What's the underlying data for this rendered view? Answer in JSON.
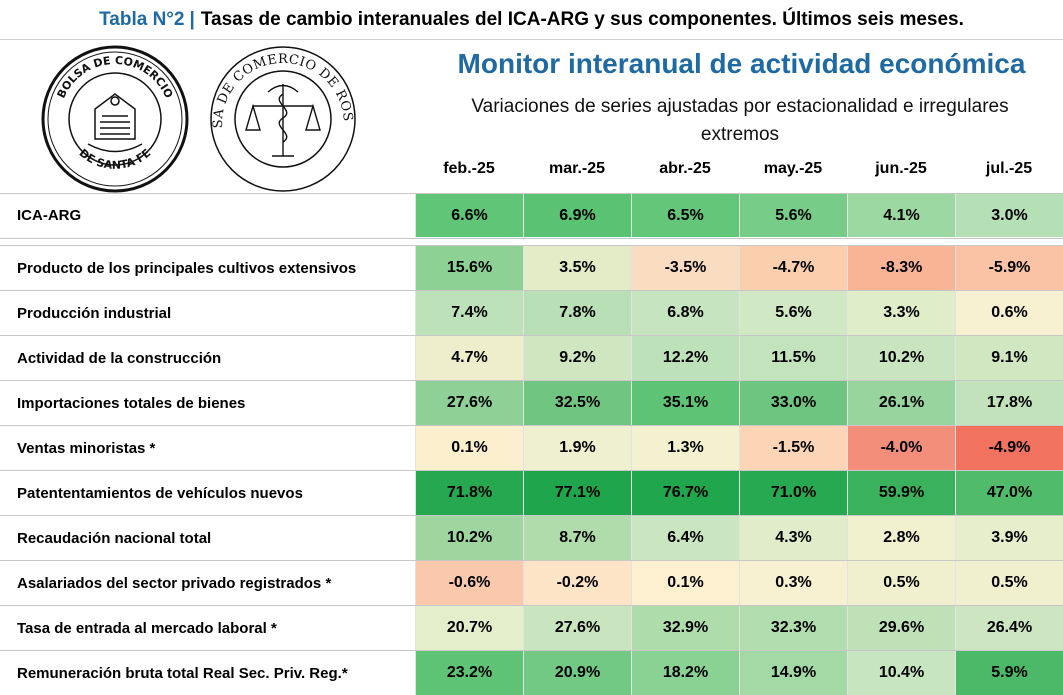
{
  "header": {
    "table_label": "Tabla N°2",
    "separator": "|",
    "table_title": "Tasas de cambio interanuales del ICA-ARG y sus componentes. Últimos seis meses.",
    "monitor_title": "Monitor interanual de actividad económica",
    "monitor_subtitle": "Variaciones de series ajustadas por estacionalidad e irregulares extremos"
  },
  "logos": {
    "santafe": "BOLSA DE COMERCIO DE SANTA FE",
    "rosario": "BOLSA DE COMERCIO DE ROSARIO"
  },
  "months": [
    "feb.-25",
    "mar.-25",
    "abr.-25",
    "may.-25",
    "jun.-25",
    "jul.-25"
  ],
  "rows": [
    {
      "label": "ICA-ARG",
      "values": [
        "6.6%",
        "6.9%",
        "6.5%",
        "5.6%",
        "4.1%",
        "3.0%"
      ],
      "colors": [
        "#60c577",
        "#5ac273",
        "#63c679",
        "#77cc87",
        "#9cd8a2",
        "#b5e0b5"
      ]
    },
    {
      "label": "Producto de los principales cultivos extensivos",
      "values": [
        "15.6%",
        "3.5%",
        "-3.5%",
        "-4.7%",
        "-8.3%",
        "-5.9%"
      ],
      "colors": [
        "#8dd294",
        "#e3ecc7",
        "#fadcc0",
        "#fbcfae",
        "#f9b395",
        "#fac3a5"
      ]
    },
    {
      "label": "Producción industrial",
      "values": [
        "7.4%",
        "7.8%",
        "6.8%",
        "5.6%",
        "3.3%",
        "0.6%"
      ],
      "colors": [
        "#bde1b9",
        "#b8dfb6",
        "#c5e4bf",
        "#d1e8c4",
        "#e0edc9",
        "#f8f1d1"
      ]
    },
    {
      "label": "Actividad de la construcción",
      "values": [
        "4.7%",
        "9.2%",
        "12.2%",
        "11.5%",
        "10.2%",
        "9.1%"
      ],
      "colors": [
        "#eeeecd",
        "#cfe6c1",
        "#bde1b9",
        "#c2e3bc",
        "#c9e5bf",
        "#d0e7c2"
      ]
    },
    {
      "label": "Importaciones totales de bienes",
      "values": [
        "27.6%",
        "32.5%",
        "35.1%",
        "33.0%",
        "26.1%",
        "17.8%"
      ],
      "colors": [
        "#8fd097",
        "#70c681",
        "#5fc375",
        "#6dc57f",
        "#98d49d",
        "#c1e2bb"
      ]
    },
    {
      "label": "Ventas minoristas *",
      "values": [
        "0.1%",
        "1.9%",
        "1.3%",
        "-1.5%",
        "-4.0%",
        "-4.9%"
      ],
      "colors": [
        "#fcefce",
        "#eff0cf",
        "#f4f1d0",
        "#fbd5b5",
        "#f38e7a",
        "#f0725f"
      ]
    },
    {
      "label": "Patententamientos de vehículos nuevos",
      "values": [
        "71.8%",
        "77.1%",
        "76.7%",
        "71.0%",
        "59.9%",
        "47.0%"
      ],
      "colors": [
        "#25a850",
        "#1fa54c",
        "#20a64d",
        "#27a951",
        "#3ab25d",
        "#50bb6b"
      ]
    },
    {
      "label": "Recaudación nacional total",
      "values": [
        "10.2%",
        "8.7%",
        "6.4%",
        "4.3%",
        "2.8%",
        "3.9%"
      ],
      "colors": [
        "#9fd6a0",
        "#b0dcac",
        "#cae6c0",
        "#e1edca",
        "#f1f0cf",
        "#e6eecb"
      ]
    },
    {
      "label": "Asalariados del sector privado registrados *",
      "values": [
        "-0.6%",
        "-0.2%",
        "0.1%",
        "0.3%",
        "0.5%",
        "0.5%"
      ],
      "colors": [
        "#fac8aa",
        "#fde4c7",
        "#fcf0d1",
        "#f8f1d1",
        "#f0f0cf",
        "#f0f0cf"
      ]
    },
    {
      "label": "Tasa de entrada al mercado laboral *",
      "values": [
        "20.7%",
        "27.6%",
        "32.9%",
        "32.3%",
        "29.6%",
        "26.4%"
      ],
      "colors": [
        "#e4eecb",
        "#c9e5bf",
        "#afdcab",
        "#b2ddae",
        "#bfe1b8",
        "#cde6c1"
      ]
    },
    {
      "label": "Remuneración bruta total Real Sec. Priv. Reg.*",
      "values": [
        "23.2%",
        "20.9%",
        "18.2%",
        "14.9%",
        "10.4%",
        "5.9%"
      ],
      "colors": [
        "#5fc375",
        "#72c983",
        "#8ad293",
        "#a3d9a4",
        "#c7e5be",
        "#4cb968"
      ]
    }
  ]
}
